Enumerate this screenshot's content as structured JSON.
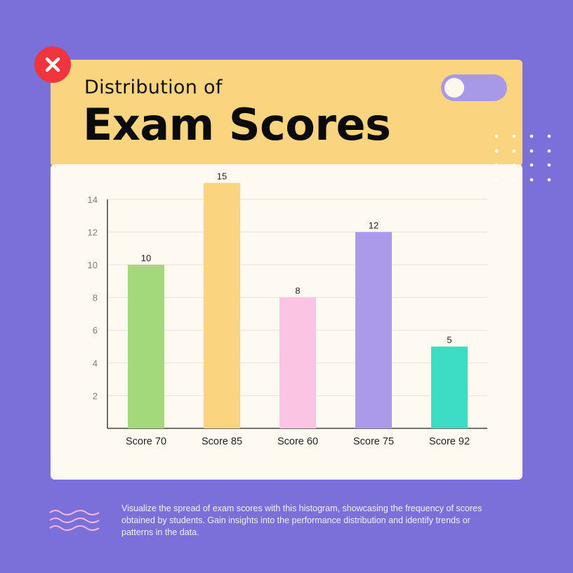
{
  "header": {
    "subtitle": "Distribution of",
    "title": "Exam Scores"
  },
  "icons": {
    "close": "close-icon",
    "toggle": "toggle-switch",
    "dots": "dot-grid-decoration",
    "waves": "wave-lines-decoration"
  },
  "colors": {
    "background": "#7b70d9",
    "header_card": "#fbd47f",
    "chart_card": "#fefaf1",
    "close_button": "#f0353e",
    "toggle": "#a899e8"
  },
  "chart_data": {
    "type": "bar",
    "categories": [
      "Score 70",
      "Score 85",
      "Score 60",
      "Score 75",
      "Score 92"
    ],
    "values": [
      10,
      15,
      8,
      12,
      5
    ],
    "bar_colors": [
      "#a3d97b",
      "#fbd47f",
      "#fbc4e2",
      "#ab9ae9",
      "#3ddcc4"
    ],
    "data_labels": [
      "10",
      "15",
      "8",
      "12",
      "5"
    ],
    "y_ticks": [
      "2",
      "4",
      "6",
      "8",
      "10",
      "12",
      "14"
    ],
    "ylim": [
      0,
      14
    ],
    "grid": true
  },
  "description": "Visualize the spread of exam scores with this histogram, showcasing the frequency of scores obtained by students. Gain insights into the performance distribution and identify trends or patterns in the data."
}
